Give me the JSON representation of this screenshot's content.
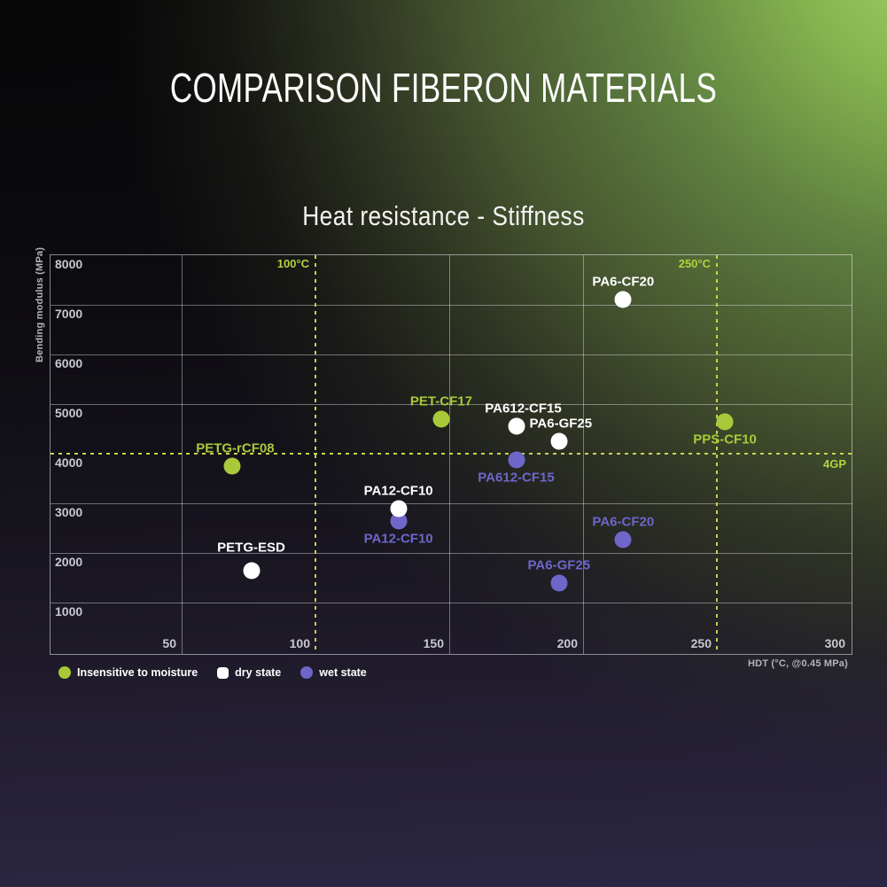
{
  "header": {
    "title": "COMPARISON FIBERON MATERIALS"
  },
  "colors": {
    "accent_green": "#a9c93a",
    "accent_purple": "#6e66c9",
    "dry_white": "#ffffff",
    "dashed_reference": "#c6d44e",
    "reference_label": "#b2d23f",
    "tick_text": "#c9c7d0"
  },
  "chart_data": {
    "type": "scatter",
    "title": "Heat resistance - Stiffness",
    "xlabel": "HDT (°C, @0.45 MPa)",
    "ylabel": "Bending modulus (MPa)",
    "xlim": [
      0,
      300
    ],
    "ylim": [
      0,
      8000
    ],
    "x_ticks": [
      50,
      100,
      150,
      200,
      250,
      300
    ],
    "y_ticks": [
      1000,
      2000,
      3000,
      4000,
      5000,
      6000,
      7000,
      8000
    ],
    "grid": true,
    "legend_position": "bottom-left",
    "reference_lines": {
      "vertical": [
        {
          "x": 100,
          "label": "100°C"
        },
        {
          "x": 250,
          "label": "250°C"
        }
      ],
      "horizontal": [
        {
          "y": 4000,
          "label": "4GP"
        }
      ]
    },
    "groups": {
      "insensitive": {
        "label": "Insensitive to moisture",
        "color": "#a9c93a",
        "marker": "circle"
      },
      "dry": {
        "label": "dry state",
        "color": "#ffffff",
        "marker": "rounded-square"
      },
      "wet": {
        "label": "wet state",
        "color": "#6e66c9",
        "marker": "circle"
      }
    },
    "legend_order": [
      "insensitive",
      "dry",
      "wet"
    ],
    "points": [
      {
        "label": "PA6-CF20",
        "group": "dry",
        "x": 215,
        "y": 7100,
        "label_pos": "above"
      },
      {
        "label": "PET-CF17",
        "group": "insensitive",
        "x": 147,
        "y": 4700,
        "label_pos": "above"
      },
      {
        "label": "PA612-CF15",
        "group": "dry",
        "x": 175,
        "y": 4550,
        "label_pos": "above",
        "dx": 8
      },
      {
        "label": "PA6-GF25",
        "group": "dry",
        "x": 191,
        "y": 4250,
        "label_pos": "above",
        "dx": 2
      },
      {
        "label": "PPS-CF10",
        "group": "insensitive",
        "x": 253,
        "y": 4650,
        "label_pos": "below"
      },
      {
        "label": "PETG-rCF08",
        "group": "insensitive",
        "x": 69,
        "y": 3750,
        "label_pos": "above",
        "dx": 3
      },
      {
        "label": "PA612-CF15",
        "group": "wet",
        "x": 175,
        "y": 3870,
        "label_pos": "below"
      },
      {
        "label": "PA12-CF10",
        "group": "wet",
        "x": 131,
        "y": 2640,
        "label_pos": "below"
      },
      {
        "label": "PA12-CF10",
        "group": "dry",
        "x": 131,
        "y": 2890,
        "label_pos": "above"
      },
      {
        "label": "PA6-CF20",
        "group": "wet",
        "x": 215,
        "y": 2270,
        "label_pos": "above"
      },
      {
        "label": "PETG-ESD",
        "group": "dry",
        "x": 76,
        "y": 1640,
        "label_pos": "above",
        "dy": -26
      },
      {
        "label": "PA6-GF25",
        "group": "wet",
        "x": 191,
        "y": 1390,
        "label_pos": "above"
      }
    ]
  }
}
